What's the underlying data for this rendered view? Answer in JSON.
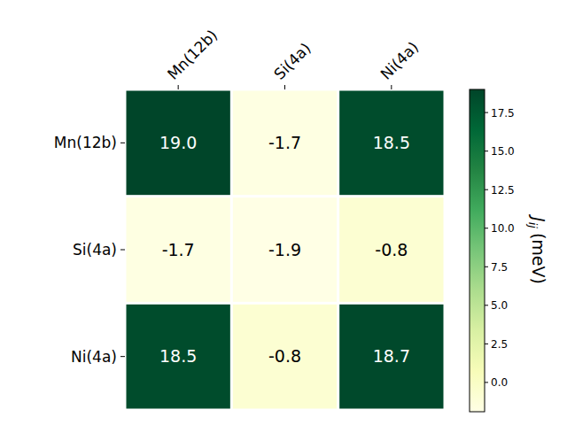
{
  "chart_data": {
    "type": "heatmap",
    "x_categories": [
      "Mn(12b)",
      "Si(4a)",
      "Ni(4a)"
    ],
    "y_categories": [
      "Mn(12b)",
      "Si(4a)",
      "Ni(4a)"
    ],
    "values": [
      [
        19.0,
        -1.7,
        18.5
      ],
      [
        -1.7,
        -1.9,
        -0.8
      ],
      [
        18.5,
        -0.8,
        18.7
      ]
    ],
    "value_labels": [
      [
        "19.0",
        "-1.7",
        "18.5"
      ],
      [
        "-1.7",
        "-1.9",
        "-0.8"
      ],
      [
        "18.5",
        "-0.8",
        "18.7"
      ]
    ],
    "data_labels": true,
    "colorbar": {
      "range": [
        -1.9,
        19.0
      ],
      "ticks": [
        {
          "value": 0,
          "label": "0.0"
        },
        {
          "value": 2.5,
          "label": "2.5"
        },
        {
          "value": 5,
          "label": "5.0"
        },
        {
          "value": 7.5,
          "label": "7.5"
        },
        {
          "value": 10,
          "label": "10.0"
        },
        {
          "value": 12.5,
          "label": "12.5"
        },
        {
          "value": 15,
          "label": "15.0"
        },
        {
          "value": 17.5,
          "label": "17.5"
        }
      ],
      "label": "J",
      "label_subscript": "ij",
      "label_unit": "(meV)"
    }
  }
}
